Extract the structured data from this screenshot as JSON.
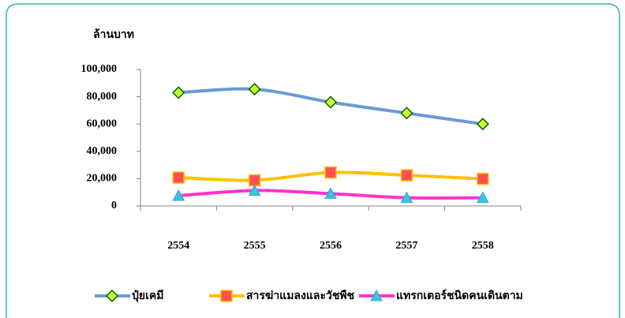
{
  "chart_data": {
    "type": "line",
    "y_label": "ล้านบาท",
    "categories": [
      "2554",
      "2555",
      "2556",
      "2557",
      "2558"
    ],
    "series": [
      {
        "name": "ปุ๋ยเคมี",
        "color": "#6a9ad6",
        "values": [
          83000,
          85500,
          76000,
          68000,
          60000
        ]
      },
      {
        "name": "สารฆ่าแมลงและวัชพืช",
        "color": "#ffc000",
        "values": [
          20800,
          18800,
          24500,
          22500,
          19800
        ]
      },
      {
        "name": "แทรกเตอร์ชนิดคนเดินตาม",
        "color": "#ff33cc",
        "values": [
          7500,
          11300,
          9000,
          6000,
          6000
        ]
      }
    ],
    "ylim": [
      0,
      100000
    ],
    "yticks": [
      0,
      {
        "value": 20000,
        "label": "20,000"
      },
      {
        "value": 40000,
        "label": "40,000"
      },
      {
        "value": 60000,
        "label": "60,000"
      },
      {
        "value": 80000,
        "label": "80,000"
      },
      {
        "value": 100000,
        "label": "100,000"
      }
    ],
    "legend": "bottom"
  }
}
